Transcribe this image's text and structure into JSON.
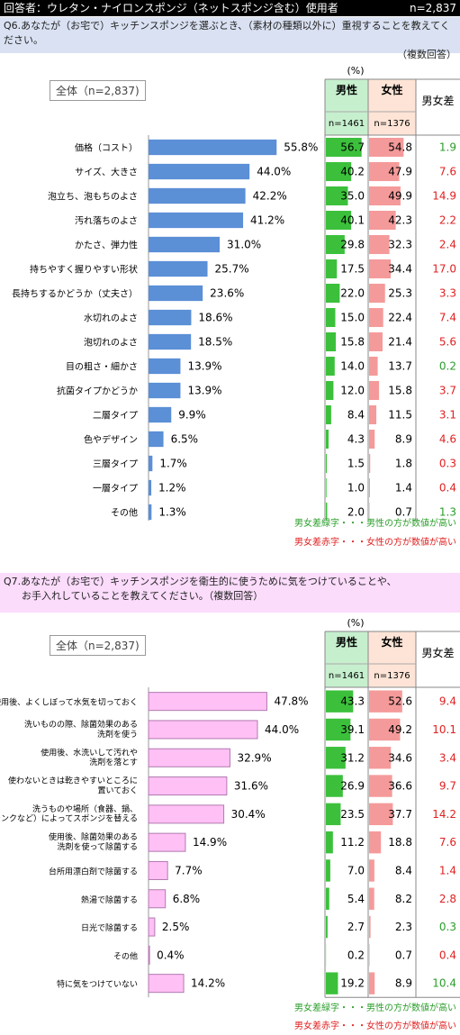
{
  "header": {
    "title": "回答者：ウレタン・ナイロンスポンジ（ネットスポンジ含む）使用者",
    "n": "n=2,837"
  },
  "q6": {
    "question_line1": "Q6.あなたが（お宅で）キッチンスポンジを選ぶとき、（素材の種類以外に）重視することを教えてください。",
    "question_line2": "（複数回答）",
    "total_label": "全体（n=2,837)",
    "pct_unit": "(%)",
    "male_label": "男性",
    "female_label": "女性",
    "diff_label": "男女差",
    "male_n": "n=1461",
    "female_n": "n=1376"
  },
  "q7": {
    "question_line1": "Q7.あなたが（お宅で）キッチンスポンジを衛生的に使うために気をつけていることや、",
    "question_line2": "お手入れしていることを教えてください。（複数回答）",
    "total_label": "全体（n=2,837)",
    "pct_unit": "(%)",
    "male_label": "男性",
    "female_label": "女性",
    "diff_label": "男女差",
    "male_n": "n=1461",
    "female_n": "n=1376"
  },
  "notes": {
    "green": "男女差緑字・・・男性の方が数値が高い",
    "red": "男女差赤字・・・女性の方が数値が高い"
  },
  "colors": {
    "q6_bar": "#5b8fd6",
    "q7_bar": "#ffc0f5",
    "male": "#3cc03c",
    "female": "#f59a9a",
    "male_head": "#c6efce",
    "female_head": "#fde4d6",
    "green_text": "#2a9d2a",
    "red_text": "#e02020"
  },
  "chart_data": [
    {
      "type": "bar",
      "title": "Q6",
      "categories": [
        "価格（コスト）",
        "サイズ、大きさ",
        "泡立ち、泡もちのよさ",
        "汚れ落ちのよさ",
        "かたさ、弾力性",
        "持ちやすく握りやすい形状",
        "長持ちするかどうか（丈夫さ）",
        "水切れのよさ",
        "泡切れのよさ",
        "目の粗さ・細かさ",
        "抗菌タイプかどうか",
        "二層タイプ",
        "色やデザイン",
        "三層タイプ",
        "一層タイプ",
        "その他"
      ],
      "values": [
        55.8,
        44.0,
        42.2,
        41.2,
        31.0,
        25.7,
        23.6,
        18.6,
        18.5,
        13.9,
        13.9,
        9.9,
        6.5,
        1.7,
        1.2,
        1.3
      ],
      "value_labels": [
        "55.8%",
        "44.0%",
        "42.2%",
        "41.2%",
        "31.0%",
        "25.7%",
        "23.6%",
        "18.6%",
        "18.5%",
        "13.9%",
        "13.9%",
        "9.9%",
        "6.5%",
        "1.7%",
        "1.2%",
        "1.3%"
      ],
      "male": [
        "56.7",
        "40.2",
        "35.0",
        "40.1",
        "29.8",
        "17.5",
        "22.0",
        "15.0",
        "15.8",
        "14.0",
        "12.0",
        "8.4",
        "4.3",
        "1.5",
        "1.0",
        "2.0"
      ],
      "female": [
        "54.8",
        "47.9",
        "49.9",
        "42.3",
        "32.3",
        "34.4",
        "25.3",
        "22.4",
        "21.4",
        "13.7",
        "15.8",
        "11.5",
        "8.9",
        "1.8",
        "1.4",
        "0.7"
      ],
      "diff": [
        "1.9",
        "7.6",
        "14.9",
        "2.2",
        "2.4",
        "17.0",
        "3.3",
        "7.4",
        "5.6",
        "0.2",
        "3.7",
        "3.1",
        "4.6",
        "0.3",
        "0.4",
        "1.3"
      ],
      "diff_male_higher": [
        true,
        false,
        false,
        false,
        false,
        false,
        false,
        false,
        false,
        true,
        false,
        false,
        false,
        false,
        false,
        true
      ]
    },
    {
      "type": "bar",
      "title": "Q7",
      "categories": [
        "使用後、よくしぼって水気を切っておく",
        "洗いものの際、除菌効果のある|洗剤を使う",
        "使用後、水洗いして汚れや|洗剤を落とす",
        "使わないときは乾きやすいところに|置いておく",
        "洗うものや場所（食器、鍋、|シンクなど）によってスポンジを替える",
        "使用後、除菌効果のある|洗剤を使って除菌する",
        "台所用漂白剤で除菌する",
        "熱湯で除菌する",
        "日光で除菌する",
        "その他",
        "特に気をつけていない"
      ],
      "values": [
        47.8,
        44.0,
        32.9,
        31.6,
        30.4,
        14.9,
        7.7,
        6.8,
        2.5,
        0.4,
        14.2
      ],
      "value_labels": [
        "47.8%",
        "44.0%",
        "32.9%",
        "31.6%",
        "30.4%",
        "14.9%",
        "7.7%",
        "6.8%",
        "2.5%",
        "0.4%",
        "14.2%"
      ],
      "male": [
        "43.3",
        "39.1",
        "31.2",
        "26.9",
        "23.5",
        "11.2",
        "7.0",
        "5.4",
        "2.7",
        "0.2",
        "19.2"
      ],
      "female": [
        "52.6",
        "49.2",
        "34.6",
        "36.6",
        "37.7",
        "18.8",
        "8.4",
        "8.2",
        "2.3",
        "0.7",
        "8.9"
      ],
      "diff": [
        "9.4",
        "10.1",
        "3.4",
        "9.7",
        "14.2",
        "7.6",
        "1.4",
        "2.8",
        "0.3",
        "0.4",
        "10.4"
      ],
      "diff_male_higher": [
        false,
        false,
        false,
        false,
        false,
        false,
        false,
        false,
        true,
        false,
        true
      ]
    }
  ]
}
